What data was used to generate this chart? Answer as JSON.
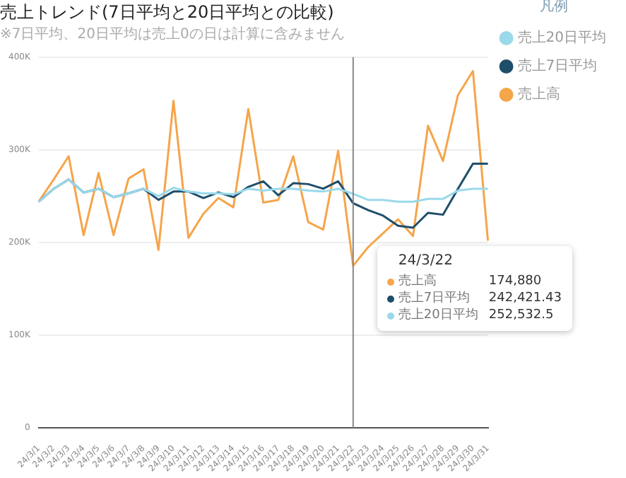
{
  "chart_data": {
    "type": "line",
    "title": "売上トレンド(7日平均と20日平均との比較)",
    "subtitle": "※7日平均、20日平均は売上0の日は計算に含みません",
    "legend_title": "凡例",
    "annotations": [
      "24/3/22",
      "売上高",
      "174,880",
      "売上7日平均",
      "242,421.43",
      "売上20日平均",
      "252,532.5"
    ],
    "categories": [
      "24/3/1",
      "24/3/2",
      "24/3/3",
      "24/3/4",
      "24/3/5",
      "24/3/6",
      "24/3/7",
      "24/3/8",
      "24/3/9",
      "24/3/10",
      "24/3/11",
      "24/3/12",
      "24/3/13",
      "24/3/14",
      "24/3/15",
      "24/3/16",
      "24/3/17",
      "24/3/18",
      "24/3/19",
      "24/3/20",
      "24/3/21",
      "24/3/22",
      "24/3/23",
      "24/3/24",
      "24/3/25",
      "24/3/26",
      "24/3/27",
      "24/3/28",
      "24/3/29",
      "24/3/30",
      "24/3/31"
    ],
    "series": [
      {
        "name": "売上20日平均",
        "color": "#9ad9ea",
        "values": [
          244000,
          258000,
          268000,
          254000,
          258000,
          249000,
          253000,
          258000,
          250000,
          259000,
          255000,
          253000,
          253000,
          252000,
          258000,
          256000,
          258000,
          258000,
          256000,
          255000,
          258000,
          252532.5,
          246000,
          246000,
          244000,
          244000,
          247000,
          247000,
          256000,
          258000,
          258000
        ]
      },
      {
        "name": "売上7日平均",
        "color": "#1f4e6b",
        "values": [
          244000,
          258000,
          268000,
          254000,
          258000,
          249000,
          253000,
          258000,
          246000,
          255000,
          255000,
          248000,
          254000,
          249000,
          260000,
          266000,
          251000,
          264000,
          263000,
          258000,
          266000,
          242421.43,
          235000,
          229000,
          218000,
          216000,
          232000,
          230000,
          258000,
          285000,
          285000
        ]
      },
      {
        "name": "売上高",
        "color": "#f5a54a",
        "values": [
          244000,
          268000,
          293000,
          208000,
          275000,
          208000,
          269000,
          279000,
          192000,
          353000,
          205000,
          231000,
          248000,
          238000,
          344000,
          243000,
          246000,
          293000,
          222000,
          214000,
          299000,
          174880,
          195000,
          210000,
          225000,
          207000,
          326000,
          288000,
          359000,
          385000,
          202000
        ]
      }
    ],
    "ylim": [
      0,
      400000
    ],
    "yticks": [
      0,
      {
        "value": 100000,
        "label": "100K"
      },
      {
        "value": 200000,
        "label": "200K"
      },
      {
        "value": 300000,
        "label": "300K"
      },
      {
        "value": 400000,
        "label": "400K"
      }
    ],
    "grid": "y",
    "legend": "top right",
    "marker": "none",
    "line_style": "solid",
    "ref_lines": [
      {
        "axis": "x",
        "value": "24/3/22",
        "color": "#888888"
      }
    ]
  }
}
